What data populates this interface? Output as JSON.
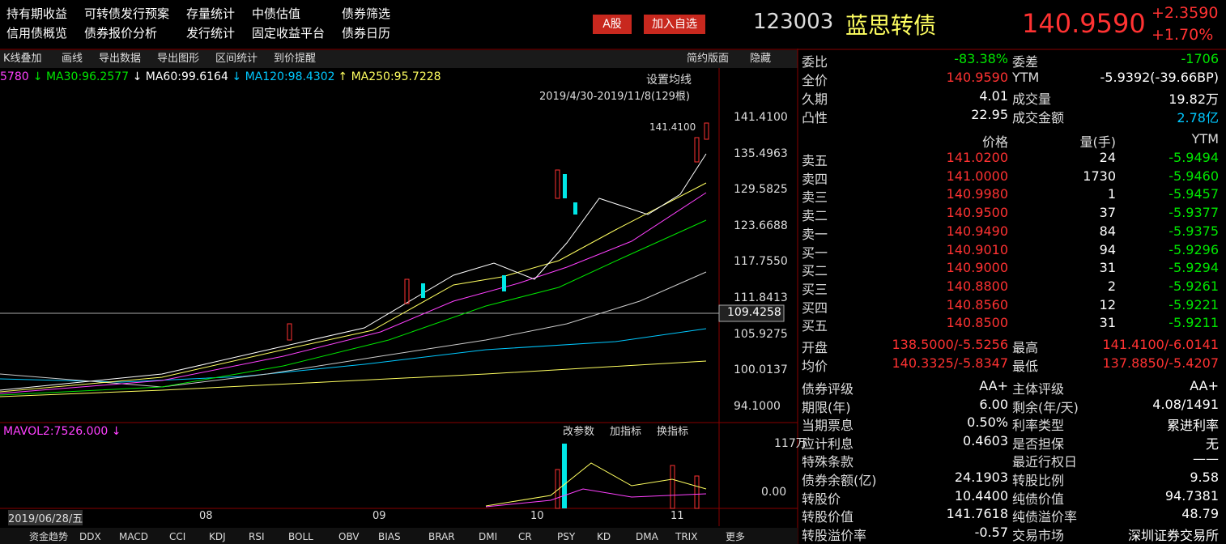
{
  "menu": [
    "持有期收益",
    "可转债发行预案",
    "存量统计",
    "中债估值",
    "债券筛选",
    "信用债概览",
    "债券报价分析",
    "发行统计",
    "固定收益平台",
    "债券日历"
  ],
  "buttons": [
    "A股",
    "加入自选"
  ],
  "quote": {
    "code": "123003",
    "name": "蓝思转债",
    "price": "140.9590",
    "change": "+2.3590",
    "pct": "+1.70%"
  },
  "toolbar": [
    "K线叠加",
    "画线",
    "导出数据",
    "导出图形",
    "区间统计",
    "到价提醒"
  ],
  "toolbar_right": [
    "简约版面",
    "隐藏"
  ],
  "ma_legend": [
    {
      "text": "5780",
      "color": "#ff40ff"
    },
    {
      "text": "↓ MA30:96.2577",
      "color": "#00e600"
    },
    {
      "text": "↓ MA60:99.6164",
      "color": "#ffffff"
    },
    {
      "text": "↓ MA120:98.4302",
      "color": "#00c8ff"
    },
    {
      "text": "↑ MA250:95.7228",
      "color": "#ffff60"
    }
  ],
  "set_ma": "设置均线",
  "range": "2019/4/30-2019/11/8(129根)",
  "price_ticks": [
    "141.4100",
    "135.4963",
    "129.5825",
    "123.6688",
    "117.7550",
    "111.8413",
    "105.9275",
    "100.0137",
    "94.1000"
  ],
  "crosshair": "109.4258",
  "max_label": "141.4100",
  "volume": {
    "legend": "MAVOL2:7526.000 ↓",
    "buttons": [
      "改参数",
      "加指标",
      "换指标"
    ],
    "ticks": [
      "117万",
      "0.00"
    ]
  },
  "x_labels": [
    "2019/06/28/五",
    "08",
    "09",
    "10",
    "11"
  ],
  "tabs": [
    "资金趋势",
    "DDX",
    "MACD",
    "CCI",
    "KDJ",
    "RSI",
    "BOLL",
    "OBV",
    "BIAS",
    "BRAR",
    "DMI",
    "CR",
    "PSY",
    "KD",
    "DMA",
    "TRIX",
    "更多"
  ],
  "summary": [
    [
      {
        "label": "委比",
        "value": "-83.38%",
        "color": "#00e600"
      },
      {
        "label": "委差",
        "value": "-1706",
        "color": "#00e600"
      }
    ],
    [
      {
        "label": "全价",
        "value": "140.9590",
        "color": "#ff3232"
      },
      {
        "label": "YTM",
        "value": "-5.9392(-39.66BP)"
      }
    ],
    [
      {
        "label": "久期",
        "value": "4.01"
      },
      {
        "label": "成交量",
        "value": "19.82万"
      }
    ],
    [
      {
        "label": "凸性",
        "value": "22.95"
      },
      {
        "label": "成交金额",
        "value": "2.78亿",
        "color": "#00c8ff"
      }
    ]
  ],
  "book_header": [
    "价格",
    "量(手)",
    "YTM"
  ],
  "book": [
    [
      "卖五",
      "141.0200",
      "24",
      "-5.9494"
    ],
    [
      "卖四",
      "141.0000",
      "1730",
      "-5.9460"
    ],
    [
      "卖三",
      "140.9980",
      "1",
      "-5.9457"
    ],
    [
      "卖二",
      "140.9500",
      "37",
      "-5.9377"
    ],
    [
      "卖一",
      "140.9490",
      "84",
      "-5.9375"
    ],
    [
      "买一",
      "140.9010",
      "94",
      "-5.9296"
    ],
    [
      "买二",
      "140.9000",
      "31",
      "-5.9294"
    ],
    [
      "买三",
      "140.8800",
      "2",
      "-5.9261"
    ],
    [
      "买四",
      "140.8560",
      "12",
      "-5.9221"
    ],
    [
      "买五",
      "140.8500",
      "31",
      "-5.9211"
    ]
  ],
  "stats": [
    [
      {
        "label": "开盘",
        "value": "138.5000/-5.5256",
        "color": "#ff3232"
      },
      {
        "label": "最高",
        "value": "141.4100/-6.0141",
        "color": "#ff3232"
      }
    ],
    [
      {
        "label": "均价",
        "value": "140.3325/-5.8347",
        "color": "#ff3232"
      },
      {
        "label": "最低",
        "value": "137.8850/-5.4207",
        "color": "#ff3232"
      }
    ]
  ],
  "info": [
    [
      {
        "label": "债券评级",
        "value": "AA+"
      },
      {
        "label": "主体评级",
        "value": "AA+"
      }
    ],
    [
      {
        "label": "期限(年)",
        "value": "6.00"
      },
      {
        "label": "剩余(年/天)",
        "value": "4.08/1491"
      }
    ],
    [
      {
        "label": "当期票息",
        "value": "0.50%"
      },
      {
        "label": "利率类型",
        "value": "累进利率"
      }
    ],
    [
      {
        "label": "应计利息",
        "value": "0.4603"
      },
      {
        "label": "是否担保",
        "value": "无"
      }
    ],
    [
      {
        "label": "特殊条款"
      },
      {
        "label": "最近行权日",
        "value": "——"
      }
    ],
    [
      {
        "label": "债券余额(亿)",
        "value": "24.1903"
      },
      {
        "label": "转股比例",
        "value": "9.58"
      }
    ],
    [
      {
        "label": "转股价",
        "value": "10.4400"
      },
      {
        "label": "纯债价值",
        "value": "94.7381"
      }
    ],
    [
      {
        "label": "转股价值",
        "value": "141.7618"
      },
      {
        "label": "纯债溢价率",
        "value": "48.79"
      }
    ],
    [
      {
        "label": "转股溢价率",
        "value": "-0.57"
      },
      {
        "label": "交易市场",
        "value": "深圳证券交易所"
      }
    ]
  ]
}
